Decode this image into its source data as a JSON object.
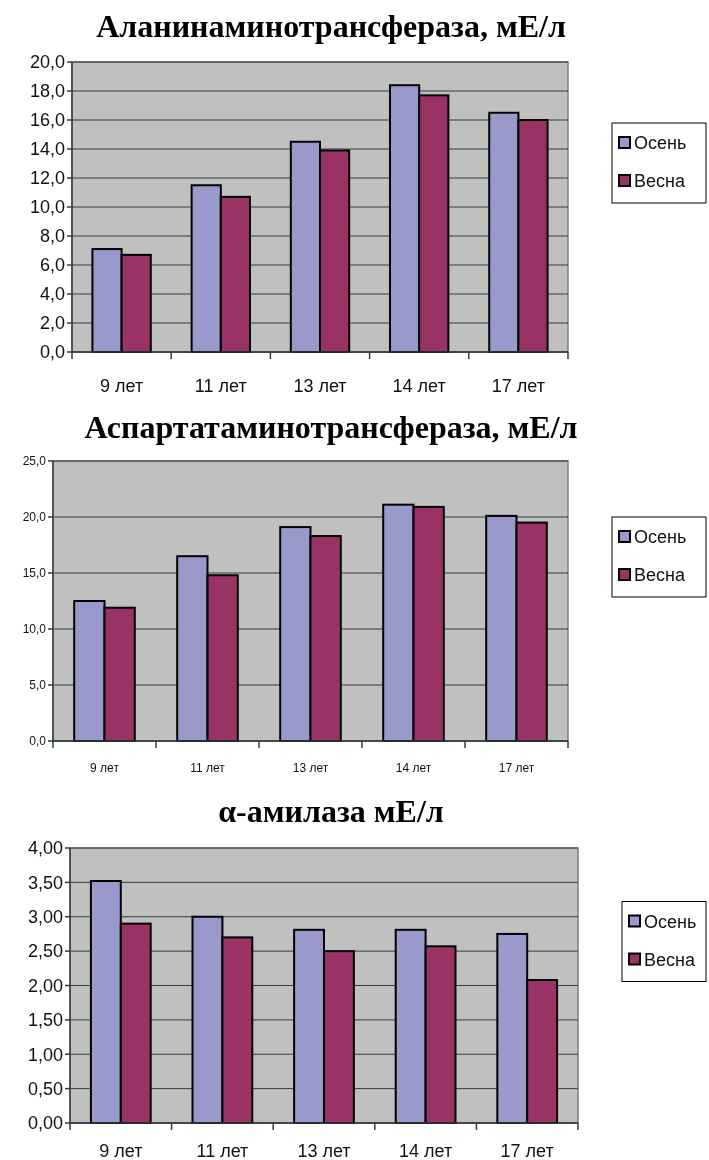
{
  "chart_data": [
    {
      "type": "bar",
      "title": "Аланинаминотрансфераза, мЕ/л",
      "categories": [
        "9 лет",
        "11 лет",
        "13 лет",
        "14 лет",
        "17 лет"
      ],
      "series": [
        {
          "name": "Осень",
          "color": "#9999cc",
          "values": [
            7.1,
            11.5,
            14.5,
            18.4,
            16.5
          ]
        },
        {
          "name": "Весна",
          "color": "#993366",
          "values": [
            6.7,
            10.7,
            13.9,
            17.7,
            16.0
          ]
        }
      ],
      "ylim": [
        0,
        20
      ],
      "yticks": [
        {
          "value": 0,
          "label": "0,0"
        },
        {
          "value": 2,
          "label": "2,0"
        },
        {
          "value": 4,
          "label": "4,0"
        },
        {
          "value": 6,
          "label": "6,0"
        },
        {
          "value": 8,
          "label": "8,0"
        },
        {
          "value": 10,
          "label": "10,0"
        },
        {
          "value": 12,
          "label": "12,0"
        },
        {
          "value": 14,
          "label": "14,0"
        },
        {
          "value": 16,
          "label": "16,0"
        },
        {
          "value": 18,
          "label": "18,0"
        },
        {
          "value": 20,
          "label": "20,0"
        }
      ],
      "grid": "y",
      "legend": "right"
    },
    {
      "type": "bar",
      "title": "Аспартатаминотрансфераза, мЕ/л",
      "categories": [
        "9 лет",
        "11 лет",
        "13 лет",
        "14 лет",
        "17 лет"
      ],
      "series": [
        {
          "name": "Осень",
          "color": "#9999cc",
          "values": [
            12.5,
            16.5,
            19.1,
            21.1,
            20.1
          ]
        },
        {
          "name": "Весна",
          "color": "#993366",
          "values": [
            11.9,
            14.8,
            18.3,
            20.9,
            19.5
          ]
        }
      ],
      "ylim": [
        0,
        25
      ],
      "yticks": [
        {
          "value": 0,
          "label": "0,0"
        },
        {
          "value": 5,
          "label": "5,0"
        },
        {
          "value": 10,
          "label": "10,0"
        },
        {
          "value": 15,
          "label": "15,0"
        },
        {
          "value": 20,
          "label": "20,0"
        },
        {
          "value": 25,
          "label": "25,0"
        }
      ],
      "grid": "y",
      "legend": "right"
    },
    {
      "type": "bar",
      "title": "α-амилаза мЕ/л",
      "categories": [
        "9 лет",
        "11 лет",
        "13 лет",
        "14 лет",
        "17 лет"
      ],
      "series": [
        {
          "name": "Осень",
          "color": "#9999cc",
          "values": [
            3.52,
            3.0,
            2.81,
            2.81,
            2.75
          ]
        },
        {
          "name": "Весна",
          "color": "#993366",
          "values": [
            2.9,
            2.7,
            2.5,
            2.57,
            2.08
          ]
        }
      ],
      "ylim": [
        0,
        4
      ],
      "yticks": [
        {
          "value": 0,
          "label": "0,00"
        },
        {
          "value": 0.5,
          "label": "0,50"
        },
        {
          "value": 1,
          "label": "1,00"
        },
        {
          "value": 1.5,
          "label": "1,50"
        },
        {
          "value": 2,
          "label": "2,00"
        },
        {
          "value": 2.5,
          "label": "2,50"
        },
        {
          "value": 3,
          "label": "3,00"
        },
        {
          "value": 3.5,
          "label": "3,50"
        },
        {
          "value": 4,
          "label": "4,00"
        }
      ],
      "grid": "y",
      "legend": "right"
    }
  ]
}
